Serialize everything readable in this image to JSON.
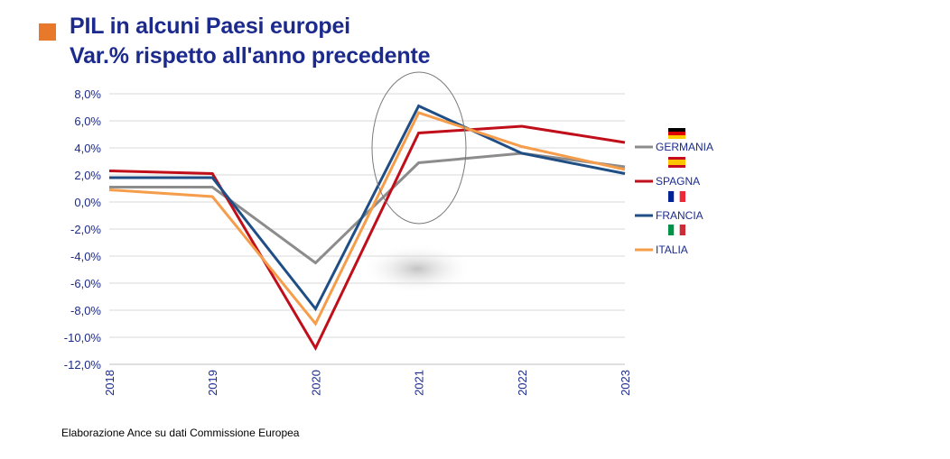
{
  "title": {
    "line1": "PIL in alcuni Paesi europei",
    "line2": "Var.% rispetto all'anno precedente"
  },
  "source": "Elaborazione Ance su dati Commissione Europea",
  "colors": {
    "title": "#1b2a8c",
    "marker": "#e8782a",
    "axis_text": "#1b2a8c"
  },
  "chart_data": {
    "type": "line",
    "title": "PIL in alcuni Paesi europei",
    "subtitle": "Var.% rispetto all'anno precedente",
    "xlabel": "",
    "ylabel": "",
    "categories": [
      "2018",
      "2019",
      "2020",
      "2021",
      "2022",
      "2023"
    ],
    "ylim": [
      -12,
      8
    ],
    "yticks": [
      8,
      6,
      4,
      2,
      0,
      -2,
      -4,
      -6,
      -8,
      -10,
      -12
    ],
    "ytick_labels": [
      "8,0%",
      "6,0%",
      "4,0%",
      "2,0%",
      "0,0%",
      "-2,0%",
      "-4,0%",
      "-6,0%",
      "-8,0%",
      "-10,0%",
      "-12,0%"
    ],
    "grid": true,
    "legend_position": "right",
    "series": [
      {
        "name": "GERMANIA",
        "color": "#8c8c8c",
        "values": [
          1.1,
          1.1,
          -4.5,
          2.9,
          3.6,
          2.6
        ]
      },
      {
        "name": "SPAGNA",
        "color": "#c00f1a",
        "values": [
          2.3,
          2.1,
          -10.8,
          5.1,
          5.6,
          4.4
        ]
      },
      {
        "name": "FRANCIA",
        "color": "#1f4e85",
        "values": [
          1.8,
          1.8,
          -7.9,
          7.1,
          3.6,
          2.1
        ]
      },
      {
        "name": "ITALIA",
        "color": "#f59d4a",
        "values": [
          0.9,
          0.4,
          -9.0,
          6.6,
          4.1,
          2.4
        ]
      }
    ],
    "annotations": [
      "ellipse highlighting 2021"
    ]
  }
}
